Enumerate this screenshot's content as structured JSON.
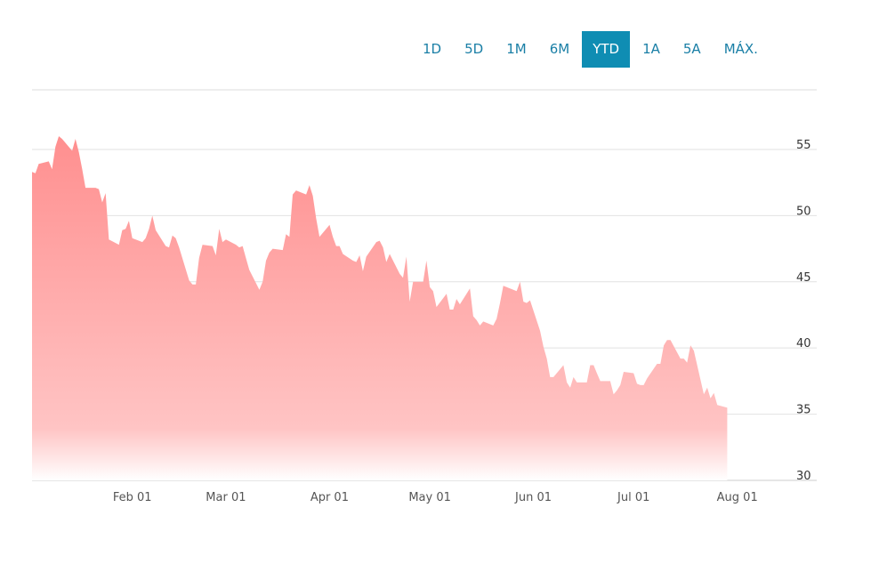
{
  "range_selector": {
    "options": [
      "1D",
      "5D",
      "1M",
      "6M",
      "YTD",
      "1A",
      "5A",
      "MÁX."
    ],
    "selected": "YTD"
  },
  "colors": {
    "area_top": "#ff8f8f",
    "area_bottom": "#ffffff",
    "grid": "#dddddd",
    "active_button": "#0f8db3",
    "button_text": "#1a7fa6"
  },
  "chart_data": {
    "type": "area",
    "title": "",
    "xlabel": "",
    "ylabel": "",
    "x_ticks": [
      "Feb 01",
      "Mar 01",
      "Apr 01",
      "May 01",
      "Jun 01",
      "Jul 01",
      "Aug 01"
    ],
    "y_ticks": [
      30,
      35,
      40,
      45,
      50,
      55
    ],
    "ylim": [
      30,
      59.5
    ],
    "xlim": [
      "2019-01-02",
      "2019-08-08"
    ],
    "grid": true,
    "series": [
      {
        "values": [
          {
            "x": "2019-01-02",
            "y": 53.3
          },
          {
            "x": "2019-01-03",
            "y": 53.2
          },
          {
            "x": "2019-01-04",
            "y": 53.9
          },
          {
            "x": "2019-01-07",
            "y": 54.1
          },
          {
            "x": "2019-01-08",
            "y": 53.5
          },
          {
            "x": "2019-01-09",
            "y": 55.2
          },
          {
            "x": "2019-01-10",
            "y": 56.0
          },
          {
            "x": "2019-01-11",
            "y": 55.8
          },
          {
            "x": "2019-01-14",
            "y": 54.9
          },
          {
            "x": "2019-01-15",
            "y": 55.8
          },
          {
            "x": "2019-01-16",
            "y": 54.8
          },
          {
            "x": "2019-01-17",
            "y": 53.5
          },
          {
            "x": "2019-01-18",
            "y": 52.1
          },
          {
            "x": "2019-01-21",
            "y": 52.1
          },
          {
            "x": "2019-01-22",
            "y": 52.0
          },
          {
            "x": "2019-01-23",
            "y": 51.0
          },
          {
            "x": "2019-01-24",
            "y": 51.7
          },
          {
            "x": "2019-01-25",
            "y": 48.2
          },
          {
            "x": "2019-01-28",
            "y": 47.8
          },
          {
            "x": "2019-01-29",
            "y": 48.9
          },
          {
            "x": "2019-01-30",
            "y": 49.0
          },
          {
            "x": "2019-01-31",
            "y": 49.6
          },
          {
            "x": "2019-02-01",
            "y": 48.3
          },
          {
            "x": "2019-02-04",
            "y": 48.0
          },
          {
            "x": "2019-02-05",
            "y": 48.3
          },
          {
            "x": "2019-02-06",
            "y": 49.0
          },
          {
            "x": "2019-02-07",
            "y": 50.0
          },
          {
            "x": "2019-02-08",
            "y": 48.9
          },
          {
            "x": "2019-02-11",
            "y": 47.7
          },
          {
            "x": "2019-02-12",
            "y": 47.6
          },
          {
            "x": "2019-02-13",
            "y": 48.5
          },
          {
            "x": "2019-02-14",
            "y": 48.3
          },
          {
            "x": "2019-02-15",
            "y": 47.6
          },
          {
            "x": "2019-02-18",
            "y": 45.1
          },
          {
            "x": "2019-02-19",
            "y": 44.8
          },
          {
            "x": "2019-02-20",
            "y": 44.8
          },
          {
            "x": "2019-02-21",
            "y": 46.8
          },
          {
            "x": "2019-02-22",
            "y": 47.8
          },
          {
            "x": "2019-02-25",
            "y": 47.7
          },
          {
            "x": "2019-02-26",
            "y": 47.0
          },
          {
            "x": "2019-02-27",
            "y": 49.0
          },
          {
            "x": "2019-02-28",
            "y": 48.0
          },
          {
            "x": "2019-03-01",
            "y": 48.2
          },
          {
            "x": "2019-03-04",
            "y": 47.8
          },
          {
            "x": "2019-03-05",
            "y": 47.6
          },
          {
            "x": "2019-03-06",
            "y": 47.7
          },
          {
            "x": "2019-03-07",
            "y": 46.8
          },
          {
            "x": "2019-03-08",
            "y": 45.9
          },
          {
            "x": "2019-03-11",
            "y": 44.4
          },
          {
            "x": "2019-03-12",
            "y": 45.0
          },
          {
            "x": "2019-03-13",
            "y": 46.6
          },
          {
            "x": "2019-03-14",
            "y": 47.2
          },
          {
            "x": "2019-03-15",
            "y": 47.5
          },
          {
            "x": "2019-03-18",
            "y": 47.4
          },
          {
            "x": "2019-03-19",
            "y": 48.6
          },
          {
            "x": "2019-03-20",
            "y": 48.4
          },
          {
            "x": "2019-03-21",
            "y": 51.6
          },
          {
            "x": "2019-03-22",
            "y": 51.9
          },
          {
            "x": "2019-03-25",
            "y": 51.6
          },
          {
            "x": "2019-03-26",
            "y": 52.3
          },
          {
            "x": "2019-03-27",
            "y": 51.5
          },
          {
            "x": "2019-03-28",
            "y": 49.8
          },
          {
            "x": "2019-03-29",
            "y": 48.4
          },
          {
            "x": "2019-04-01",
            "y": 49.3
          },
          {
            "x": "2019-04-02",
            "y": 48.4
          },
          {
            "x": "2019-04-03",
            "y": 47.7
          },
          {
            "x": "2019-04-04",
            "y": 47.7
          },
          {
            "x": "2019-04-05",
            "y": 47.1
          },
          {
            "x": "2019-04-08",
            "y": 46.6
          },
          {
            "x": "2019-04-09",
            "y": 46.5
          },
          {
            "x": "2019-04-10",
            "y": 47.0
          },
          {
            "x": "2019-04-11",
            "y": 45.8
          },
          {
            "x": "2019-04-12",
            "y": 46.9
          },
          {
            "x": "2019-04-15",
            "y": 48.0
          },
          {
            "x": "2019-04-16",
            "y": 48.1
          },
          {
            "x": "2019-04-17",
            "y": 47.6
          },
          {
            "x": "2019-04-18",
            "y": 46.5
          },
          {
            "x": "2019-04-19",
            "y": 47.1
          },
          {
            "x": "2019-04-22",
            "y": 45.6
          },
          {
            "x": "2019-04-23",
            "y": 45.3
          },
          {
            "x": "2019-04-24",
            "y": 46.9
          },
          {
            "x": "2019-04-25",
            "y": 43.5
          },
          {
            "x": "2019-04-26",
            "y": 45.0
          },
          {
            "x": "2019-04-29",
            "y": 45.0
          },
          {
            "x": "2019-04-30",
            "y": 46.6
          },
          {
            "x": "2019-05-01",
            "y": 44.6
          },
          {
            "x": "2019-05-02",
            "y": 44.3
          },
          {
            "x": "2019-05-03",
            "y": 43.1
          },
          {
            "x": "2019-05-06",
            "y": 44.1
          },
          {
            "x": "2019-05-07",
            "y": 42.9
          },
          {
            "x": "2019-05-08",
            "y": 42.9
          },
          {
            "x": "2019-05-09",
            "y": 43.7
          },
          {
            "x": "2019-05-10",
            "y": 43.3
          },
          {
            "x": "2019-05-13",
            "y": 44.5
          },
          {
            "x": "2019-05-14",
            "y": 42.4
          },
          {
            "x": "2019-05-15",
            "y": 42.1
          },
          {
            "x": "2019-05-16",
            "y": 41.7
          },
          {
            "x": "2019-05-17",
            "y": 42.0
          },
          {
            "x": "2019-05-20",
            "y": 41.7
          },
          {
            "x": "2019-05-21",
            "y": 42.2
          },
          {
            "x": "2019-05-22",
            "y": 43.4
          },
          {
            "x": "2019-05-23",
            "y": 44.7
          },
          {
            "x": "2019-05-24",
            "y": 44.6
          },
          {
            "x": "2019-05-27",
            "y": 44.3
          },
          {
            "x": "2019-05-28",
            "y": 45.0
          },
          {
            "x": "2019-05-29",
            "y": 43.5
          },
          {
            "x": "2019-05-30",
            "y": 43.4
          },
          {
            "x": "2019-05-31",
            "y": 43.6
          },
          {
            "x": "2019-06-03",
            "y": 41.3
          },
          {
            "x": "2019-06-04",
            "y": 40.1
          },
          {
            "x": "2019-06-05",
            "y": 39.2
          },
          {
            "x": "2019-06-06",
            "y": 37.8
          },
          {
            "x": "2019-06-07",
            "y": 37.8
          },
          {
            "x": "2019-06-10",
            "y": 38.7
          },
          {
            "x": "2019-06-11",
            "y": 37.4
          },
          {
            "x": "2019-06-12",
            "y": 37.0
          },
          {
            "x": "2019-06-13",
            "y": 37.8
          },
          {
            "x": "2019-06-14",
            "y": 37.4
          },
          {
            "x": "2019-06-17",
            "y": 37.4
          },
          {
            "x": "2019-06-18",
            "y": 38.7
          },
          {
            "x": "2019-06-19",
            "y": 38.7
          },
          {
            "x": "2019-06-20",
            "y": 38.1
          },
          {
            "x": "2019-06-21",
            "y": 37.5
          },
          {
            "x": "2019-06-24",
            "y": 37.5
          },
          {
            "x": "2019-06-25",
            "y": 36.5
          },
          {
            "x": "2019-06-26",
            "y": 36.8
          },
          {
            "x": "2019-06-27",
            "y": 37.2
          },
          {
            "x": "2019-06-28",
            "y": 38.2
          },
          {
            "x": "2019-07-01",
            "y": 38.1
          },
          {
            "x": "2019-07-02",
            "y": 37.3
          },
          {
            "x": "2019-07-03",
            "y": 37.2
          },
          {
            "x": "2019-07-04",
            "y": 37.2
          },
          {
            "x": "2019-07-05",
            "y": 37.7
          },
          {
            "x": "2019-07-08",
            "y": 38.8
          },
          {
            "x": "2019-07-09",
            "y": 38.8
          },
          {
            "x": "2019-07-10",
            "y": 40.2
          },
          {
            "x": "2019-07-11",
            "y": 40.6
          },
          {
            "x": "2019-07-12",
            "y": 40.6
          },
          {
            "x": "2019-07-15",
            "y": 39.2
          },
          {
            "x": "2019-07-16",
            "y": 39.2
          },
          {
            "x": "2019-07-17",
            "y": 38.9
          },
          {
            "x": "2019-07-18",
            "y": 40.2
          },
          {
            "x": "2019-07-19",
            "y": 39.8
          },
          {
            "x": "2019-07-22",
            "y": 36.5
          },
          {
            "x": "2019-07-23",
            "y": 37.0
          },
          {
            "x": "2019-07-24",
            "y": 36.2
          },
          {
            "x": "2019-07-25",
            "y": 36.6
          },
          {
            "x": "2019-07-26",
            "y": 35.7
          },
          {
            "x": "2019-07-29",
            "y": 35.5
          }
        ]
      }
    ]
  }
}
